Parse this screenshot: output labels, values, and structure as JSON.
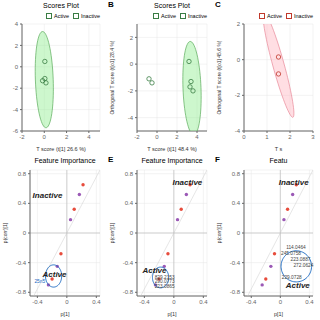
{
  "chart_data": [
    {
      "type": "scatter",
      "title": "Scores Plot",
      "xlabel": "T score (t[1] 26.6 %)",
      "x": [
        0.05,
        -0.15,
        0.15,
        0.05
      ],
      "values": [
        0.5,
        -1.3,
        -1.5,
        -1.1
      ],
      "color": "#3a7d44",
      "marker": "open circle",
      "ellipse": {
        "x": 0.0,
        "y": -1.2,
        "width": 1.6,
        "height": 9.0,
        "angle": 2,
        "color": "#90EE90",
        "edge_color": "#5aaa5a"
      },
      "legend": "upper right",
      "legend_items": [
        {
          "name": "Active",
          "color": "#3a7d44"
        },
        {
          "name": "Inactive",
          "color": "#3a7d44"
        }
      ],
      "xlim": [
        -2,
        5
      ],
      "ylim": [
        -6,
        4
      ],
      "xticks": [
        -2,
        0,
        2,
        4
      ],
      "yticks": [
        -6,
        -4,
        -2,
        0,
        2,
        4
      ],
      "grid": true
    },
    {
      "type": "scatter",
      "title": "Scores Plot",
      "panel_label": "B",
      "xlabel": "T score (t[1] 48.4 %)",
      "ylabel": "Orthogonal T score (t[o1] 28.4 %)",
      "x": [
        -0.8,
        -0.5,
        3.2,
        3.4,
        3.6,
        3.3
      ],
      "values": [
        -1.1,
        -1.4,
        0.2,
        -1.3,
        -2.0,
        -1.7
      ],
      "color": "#3a7d44",
      "marker": "open circle",
      "ellipse": {
        "x": 3.5,
        "y": -1.8,
        "width": 1.8,
        "height": 7.0,
        "angle": 3,
        "color": "#90EE90",
        "edge_color": "#5aaa5a"
      },
      "legend": "upper right",
      "legend_items": [
        {
          "name": "Active",
          "color": "#3a7d44"
        },
        {
          "name": "Inactive",
          "color": "#3a7d44"
        }
      ],
      "xlim": [
        -2,
        5
      ],
      "ylim": [
        -5,
        3
      ],
      "xticks": [
        -2,
        0,
        2,
        4
      ],
      "yticks": [
        -4,
        -2,
        0,
        2
      ],
      "grid": true
    },
    {
      "type": "scatter",
      "panel_label": "C",
      "xlabel": "T s",
      "ylabel": "Orthogonal T score (t[o1] 45.6 %)",
      "x": [
        1.5,
        1.5
      ],
      "values": [
        0.15,
        -0.8
      ],
      "color": "#c0392b",
      "marker": "open circle",
      "ellipse": {
        "x": 1.5,
        "y": -0.3,
        "width": 0.5,
        "height": 6.0,
        "angle": 12,
        "color": "#FFB6C1",
        "edge_color": "#e88898"
      },
      "legend": "upper right",
      "legend_items": [
        {
          "name": "Active",
          "color": "#c0392b"
        },
        {
          "name": "Inactive",
          "color": "#c0392b"
        }
      ],
      "xlim": [
        0,
        3
      ],
      "ylim": [
        -4,
        2
      ],
      "xticks": [
        0,
        1,
        2,
        3
      ],
      "yticks": [
        -4,
        -2,
        0,
        2
      ],
      "grid": true
    },
    {
      "type": "scatter",
      "title": "Feature Importance",
      "xlabel": "p[1]",
      "ylabel": "p(corr)[1]",
      "x": [
        -0.25,
        -0.2,
        -0.13,
        -0.08,
        0.05,
        0.1,
        0.17,
        0.22
      ],
      "values": [
        -0.7,
        -0.62,
        -0.45,
        -0.28,
        0.18,
        0.32,
        0.52,
        0.65
      ],
      "colors": [
        "#9b59b6",
        "#e74c3c",
        "#9b59b6",
        "#e74c3c",
        "#9b59b6",
        "#e74c3c",
        "#9b59b6",
        "#e74c3c"
      ],
      "marker": "circle",
      "reference_line": [
        {
          "x": -0.5,
          "y": -0.9444444444444444
        },
        {
          "x": 0.45,
          "y": 0.85
        }
      ],
      "hlines": [
        0
      ],
      "vlines": [
        0
      ],
      "ellipse": {
        "x": -0.18,
        "y": -0.58,
        "width": 0.22,
        "height": 0.3,
        "angle": 0,
        "color": "#1565C0"
      },
      "group_labels": [
        "Inactive",
        "Active"
      ],
      "annotations": [
        {
          "text": "25n5",
          "x": -0.44,
          "y": -0.68,
          "color": "#1565C0"
        }
      ],
      "xlim": [
        -0.5,
        0.45
      ],
      "ylim": [
        -0.85,
        0.85
      ],
      "xticks": [
        -0.4,
        0,
        0.4
      ],
      "yticks": [
        -0.8,
        -0.4,
        0,
        0.4,
        0.8
      ],
      "grid": true
    },
    {
      "type": "scatter",
      "title": "Feature Importance",
      "panel_label": "E",
      "xlabel": "p[1]",
      "ylabel": "p(corr)[1]",
      "x": [
        -0.25,
        -0.2,
        -0.13,
        -0.08,
        0.05,
        0.1,
        0.17,
        0.22
      ],
      "values": [
        -0.7,
        -0.62,
        -0.45,
        -0.28,
        0.18,
        0.32,
        0.52,
        0.65
      ],
      "colors": [
        "#9b59b6",
        "#e74c3c",
        "#9b59b6",
        "#e74c3c",
        "#9b59b6",
        "#e74c3c",
        "#9b59b6",
        "#e74c3c"
      ],
      "marker": "circle",
      "reference_line": [
        {
          "x": -0.5,
          "y": -0.9444444444444444
        },
        {
          "x": 0.45,
          "y": 0.85
        }
      ],
      "hlines": [
        0
      ],
      "vlines": [
        0
      ],
      "ellipse": {
        "x": -0.18,
        "y": -0.6,
        "width": 0.22,
        "height": 0.28,
        "angle": 0,
        "color": "#1565C0"
      },
      "group_labels": [
        "Inactive",
        "Active"
      ],
      "annotations": [
        {
          "text": "829.2153",
          "x": -0.26,
          "y": -0.62,
          "color": "#444444"
        },
        {
          "text": "290.0773",
          "x": -0.26,
          "y": -0.68,
          "color": "#444444"
        },
        {
          "text": "223.0865",
          "x": -0.26,
          "y": -0.74,
          "color": "#444444"
        }
      ],
      "xlim": [
        -0.5,
        0.45
      ],
      "ylim": [
        -0.85,
        0.85
      ],
      "xticks": [
        -0.4,
        0,
        0.4
      ],
      "yticks": [
        -0.8,
        -0.4,
        0,
        0.4,
        0.8
      ],
      "grid": true
    },
    {
      "type": "scatter",
      "title": "Featu",
      "panel_label": "F",
      "xlabel": "p[1]",
      "ylabel": "p(corr)[1]",
      "x": [
        -0.25,
        -0.2,
        -0.13,
        -0.08,
        0.05,
        0.1,
        0.17,
        0.22
      ],
      "values": [
        -0.7,
        -0.62,
        -0.45,
        -0.28,
        0.18,
        0.32,
        0.52,
        0.65
      ],
      "colors": [
        "#9b59b6",
        "#e74c3c",
        "#9b59b6",
        "#e74c3c",
        "#9b59b6",
        "#e74c3c",
        "#9b59b6",
        "#e74c3c"
      ],
      "marker": "circle",
      "reference_line": [
        {
          "x": -0.5,
          "y": -0.9444444444444444
        },
        {
          "x": 0.45,
          "y": 0.85
        }
      ],
      "hlines": [
        0
      ],
      "vlines": [
        0
      ],
      "ellipse": {
        "x": 0.22,
        "y": -0.45,
        "width": 0.42,
        "height": 0.42,
        "angle": 0,
        "color": "#1565C0"
      },
      "group_labels": [
        "Inactive",
        "Active"
      ],
      "annotations": [
        {
          "text": "114.0464",
          "x": 0.08,
          "y": -0.22,
          "color": "#444444"
        },
        {
          "text": "245.0758",
          "x": 0.01,
          "y": -0.3,
          "color": "#444444"
        },
        {
          "text": "223.0887",
          "x": 0.14,
          "y": -0.38,
          "color": "#444444"
        },
        {
          "text": "272.0624",
          "x": 0.18,
          "y": -0.46,
          "color": "#444444"
        },
        {
          "text": "229.0728",
          "x": 0.02,
          "y": -0.62,
          "color": "#444444"
        }
      ],
      "xlim": [
        -0.5,
        0.45
      ],
      "ylim": [
        -0.85,
        0.85
      ],
      "xticks": [
        -0.4,
        0,
        0.4
      ],
      "yticks": [
        -0.8,
        -0.4,
        0,
        0.4,
        0.8
      ],
      "grid": true
    }
  ]
}
